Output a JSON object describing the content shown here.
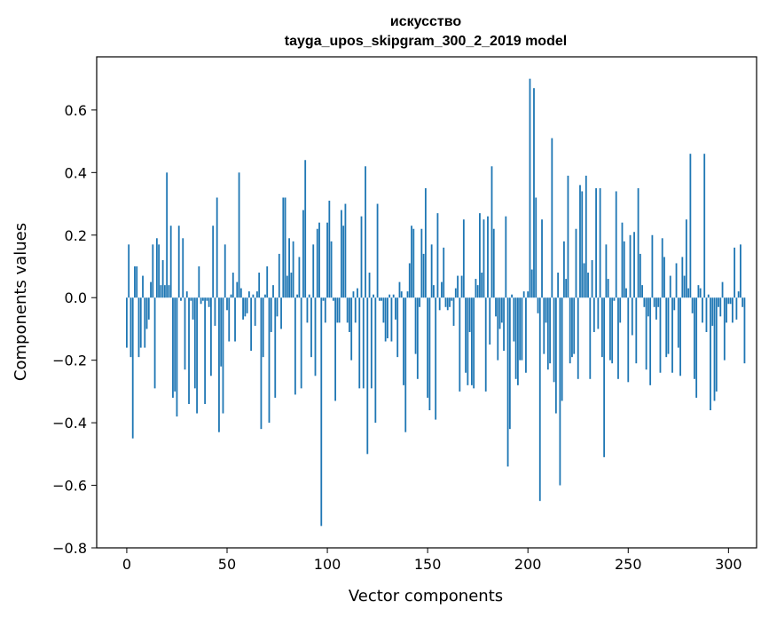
{
  "chart_data": {
    "type": "bar",
    "title": "искусство",
    "subtitle": "tayga_upos_skipgram_300_2_2019 model",
    "xlabel": "Vector components",
    "ylabel": "Components values",
    "xlim": [
      -15,
      314
    ],
    "ylim": [
      -0.8,
      0.77
    ],
    "xticks": [
      0,
      50,
      100,
      150,
      200,
      250,
      300
    ],
    "yticks": [
      -0.8,
      -0.6,
      -0.4,
      -0.2,
      0.0,
      0.2,
      0.4,
      0.6
    ],
    "ytick_labels": [
      "−0.8",
      "−0.6",
      "−0.4",
      "−0.2",
      "0.0",
      "0.2",
      "0.4",
      "0.6"
    ],
    "grid": false,
    "bar_color": "#1f77b4",
    "values": [
      -0.16,
      0.17,
      -0.19,
      -0.45,
      0.1,
      0.1,
      -0.19,
      -0.16,
      0.07,
      -0.16,
      -0.1,
      -0.07,
      0.05,
      0.17,
      -0.29,
      0.19,
      0.17,
      0.04,
      0.12,
      0.04,
      0.4,
      0.04,
      0.23,
      -0.32,
      -0.3,
      -0.38,
      0.23,
      -0.01,
      0.19,
      -0.23,
      0.02,
      -0.34,
      -0.01,
      -0.07,
      -0.29,
      -0.37,
      0.1,
      -0.02,
      -0.01,
      -0.34,
      -0.01,
      -0.03,
      -0.25,
      0.23,
      -0.09,
      0.32,
      -0.43,
      -0.22,
      -0.37,
      0.17,
      -0.04,
      -0.14,
      0.01,
      0.08,
      -0.14,
      0.05,
      0.4,
      0.03,
      -0.07,
      -0.06,
      -0.05,
      0.02,
      -0.17,
      0.01,
      -0.09,
      0.02,
      0.08,
      -0.42,
      -0.19,
      0.01,
      0.1,
      -0.4,
      -0.11,
      0.04,
      -0.32,
      -0.06,
      0.14,
      -0.1,
      0.32,
      0.32,
      0.07,
      0.19,
      0.08,
      0.18,
      -0.31,
      0.01,
      0.13,
      -0.29,
      0.28,
      0.44,
      -0.08,
      0.01,
      -0.19,
      0.17,
      -0.25,
      0.22,
      0.24,
      -0.73,
      -0.01,
      -0.08,
      0.24,
      0.31,
      0.18,
      -0.01,
      -0.33,
      -0.08,
      -0.08,
      0.28,
      0.23,
      0.3,
      -0.08,
      -0.11,
      -0.2,
      0.02,
      -0.08,
      0.03,
      -0.29,
      0.26,
      -0.29,
      0.42,
      -0.5,
      0.08,
      -0.29,
      0.01,
      -0.4,
      0.3,
      -0.01,
      -0.01,
      -0.08,
      -0.14,
      -0.13,
      0.01,
      -0.14,
      0.01,
      -0.07,
      -0.19,
      0.05,
      0.02,
      -0.28,
      -0.43,
      0.02,
      0.11,
      0.23,
      0.22,
      -0.18,
      -0.26,
      -0.03,
      0.22,
      0.14,
      0.35,
      -0.32,
      -0.36,
      0.17,
      0.04,
      -0.39,
      0.27,
      -0.04,
      0.05,
      0.16,
      -0.03,
      -0.04,
      -0.03,
      -0.01,
      -0.09,
      0.03,
      0.07,
      -0.3,
      0.07,
      0.25,
      -0.24,
      -0.28,
      -0.11,
      -0.28,
      -0.29,
      0.06,
      0.04,
      0.27,
      0.08,
      0.25,
      -0.3,
      0.26,
      -0.15,
      0.42,
      0.22,
      -0.06,
      -0.2,
      -0.1,
      -0.08,
      -0.17,
      0.26,
      -0.54,
      -0.42,
      0.01,
      -0.14,
      -0.26,
      -0.28,
      -0.2,
      -0.2,
      0.02,
      -0.24,
      0.02,
      0.7,
      0.09,
      0.67,
      0.32,
      -0.05,
      -0.65,
      0.25,
      -0.18,
      -0.08,
      -0.23,
      -0.21,
      0.51,
      -0.27,
      -0.37,
      0.08,
      -0.6,
      -0.33,
      0.18,
      0.06,
      0.39,
      -0.21,
      -0.19,
      -0.18,
      0.22,
      -0.26,
      0.36,
      0.34,
      0.11,
      0.39,
      0.08,
      -0.26,
      0.12,
      -0.11,
      0.35,
      -0.1,
      0.35,
      -0.19,
      -0.51,
      0.17,
      0.06,
      -0.2,
      -0.21,
      -0.01,
      0.34,
      -0.26,
      -0.08,
      0.24,
      0.18,
      0.03,
      -0.27,
      0.2,
      -0.12,
      0.21,
      -0.21,
      0.35,
      0.14,
      0.04,
      -0.03,
      -0.23,
      -0.06,
      -0.28,
      0.2,
      -0.03,
      -0.07,
      -0.03,
      -0.24,
      0.19,
      0.13,
      -0.19,
      -0.18,
      0.07,
      -0.24,
      -0.04,
      0.11,
      -0.16,
      -0.25,
      0.13,
      0.07,
      0.25,
      0.03,
      0.46,
      -0.05,
      -0.26,
      -0.32,
      0.04,
      0.03,
      -0.08,
      0.46,
      -0.11,
      0.01,
      -0.36,
      -0.09,
      -0.33,
      -0.3,
      -0.03,
      -0.06,
      0.05,
      -0.2,
      -0.08,
      -0.02,
      -0.02,
      -0.08,
      0.16,
      -0.07,
      0.02,
      0.17,
      -0.03,
      -0.21
    ]
  }
}
